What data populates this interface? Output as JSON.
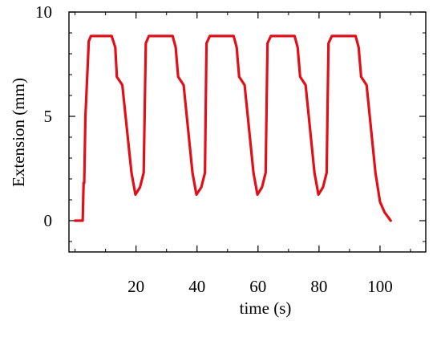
{
  "chart_data": {
    "type": "line",
    "xlabel": "time (s)",
    "ylabel": "Extension (mm)",
    "xlim": [
      -2,
      115
    ],
    "ylim": [
      -1.5,
      10
    ],
    "x_ticks": [
      20,
      40,
      60,
      80,
      100
    ],
    "x_tick_labels": [
      "20",
      "40",
      "60",
      "80",
      "100"
    ],
    "y_ticks": [
      0,
      5,
      10
    ],
    "y_tick_labels": [
      "0",
      "5",
      "10"
    ],
    "grid": false,
    "legend": "none",
    "series": [
      {
        "color": "#e0101a",
        "x": [
          0,
          2.5,
          2.8,
          3.0,
          3.4,
          4.5,
          5.2,
          12.0,
          13.2,
          13.7,
          15.5,
          18.5,
          19.8,
          21.3,
          22.5,
          23.2,
          24.2,
          32.0,
          33.0,
          33.8,
          35.6,
          38.5,
          39.8,
          41.4,
          42.6,
          43.1,
          44.2,
          52.0,
          53.0,
          53.8,
          55.6,
          58.5,
          59.8,
          61.3,
          62.5,
          63.1,
          64.2,
          72.0,
          73.0,
          73.8,
          75.6,
          78.5,
          79.8,
          81.3,
          82.5,
          83.1,
          84.2,
          92.0,
          93.0,
          93.8,
          95.6,
          98.5,
          100.0,
          101.5,
          103.5
        ],
        "y": [
          0,
          0,
          1.8,
          1.8,
          5.0,
          8.6,
          8.85,
          8.85,
          8.3,
          6.9,
          6.5,
          2.3,
          1.25,
          1.6,
          2.3,
          8.5,
          8.85,
          8.85,
          8.3,
          6.9,
          6.5,
          2.3,
          1.25,
          1.6,
          2.3,
          8.5,
          8.85,
          8.85,
          8.3,
          6.9,
          6.5,
          2.3,
          1.25,
          1.6,
          2.3,
          8.5,
          8.85,
          8.85,
          8.3,
          6.9,
          6.5,
          2.3,
          1.25,
          1.6,
          2.3,
          8.5,
          8.85,
          8.85,
          8.3,
          6.9,
          6.5,
          2.3,
          0.9,
          0.4,
          0.0
        ]
      }
    ]
  }
}
